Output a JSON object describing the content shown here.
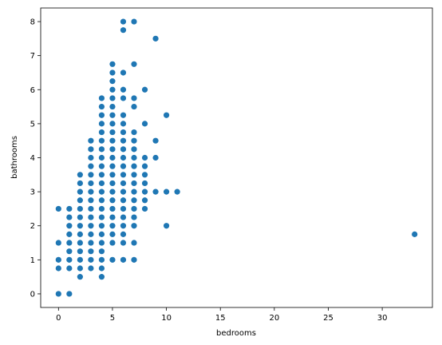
{
  "chart_data": {
    "type": "scatter",
    "title": "",
    "xlabel": "bedrooms",
    "ylabel": "bathrooms",
    "xlim": [
      -1.65,
      34.65
    ],
    "ylim": [
      -0.4,
      8.4
    ],
    "xticks": [
      0,
      5,
      10,
      15,
      20,
      25,
      30
    ],
    "yticks": [
      0,
      1,
      2,
      3,
      4,
      5,
      6,
      7,
      8
    ],
    "grid": false,
    "legend": "none",
    "marker_color": "#1f77b4",
    "series": [
      {
        "points": [
          [
            0,
            0
          ],
          [
            0,
            0.75
          ],
          [
            0,
            1
          ],
          [
            0,
            1.5
          ],
          [
            0,
            2.5
          ],
          [
            1,
            0
          ],
          [
            1,
            0.75
          ],
          [
            1,
            1
          ],
          [
            1,
            1.25
          ],
          [
            1,
            1.5
          ],
          [
            1,
            1.75
          ],
          [
            1,
            2
          ],
          [
            1,
            2.25
          ],
          [
            1,
            2.5
          ],
          [
            2,
            0.5
          ],
          [
            2,
            0.75
          ],
          [
            2,
            1
          ],
          [
            2,
            1.25
          ],
          [
            2,
            1.5
          ],
          [
            2,
            1.75
          ],
          [
            2,
            2
          ],
          [
            2,
            2.25
          ],
          [
            2,
            2.5
          ],
          [
            2,
            2.75
          ],
          [
            2,
            3
          ],
          [
            2,
            3.25
          ],
          [
            2,
            3.5
          ],
          [
            3,
            0.75
          ],
          [
            3,
            1
          ],
          [
            3,
            1.25
          ],
          [
            3,
            1.5
          ],
          [
            3,
            1.75
          ],
          [
            3,
            2
          ],
          [
            3,
            2.25
          ],
          [
            3,
            2.5
          ],
          [
            3,
            2.75
          ],
          [
            3,
            3
          ],
          [
            3,
            3.25
          ],
          [
            3,
            3.5
          ],
          [
            3,
            3.75
          ],
          [
            3,
            4
          ],
          [
            3,
            4.25
          ],
          [
            3,
            4.5
          ],
          [
            4,
            0.5
          ],
          [
            4,
            0.75
          ],
          [
            4,
            1
          ],
          [
            4,
            1.25
          ],
          [
            4,
            1.5
          ],
          [
            4,
            1.75
          ],
          [
            4,
            2
          ],
          [
            4,
            2.25
          ],
          [
            4,
            2.5
          ],
          [
            4,
            2.75
          ],
          [
            4,
            3
          ],
          [
            4,
            3.25
          ],
          [
            4,
            3.5
          ],
          [
            4,
            3.75
          ],
          [
            4,
            4
          ],
          [
            4,
            4.25
          ],
          [
            4,
            4.5
          ],
          [
            4,
            4.75
          ],
          [
            4,
            5
          ],
          [
            4,
            5.25
          ],
          [
            4,
            5.5
          ],
          [
            4,
            5.75
          ],
          [
            5,
            1
          ],
          [
            5,
            1.5
          ],
          [
            5,
            1.75
          ],
          [
            5,
            2
          ],
          [
            5,
            2.25
          ],
          [
            5,
            2.5
          ],
          [
            5,
            2.75
          ],
          [
            5,
            3
          ],
          [
            5,
            3.25
          ],
          [
            5,
            3.5
          ],
          [
            5,
            3.75
          ],
          [
            5,
            4
          ],
          [
            5,
            4.25
          ],
          [
            5,
            4.5
          ],
          [
            5,
            4.75
          ],
          [
            5,
            5
          ],
          [
            5,
            5.25
          ],
          [
            5,
            5.5
          ],
          [
            5,
            5.75
          ],
          [
            5,
            6
          ],
          [
            5,
            6.25
          ],
          [
            5,
            6.5
          ],
          [
            5,
            6.75
          ],
          [
            6,
            1
          ],
          [
            6,
            1.5
          ],
          [
            6,
            1.75
          ],
          [
            6,
            2
          ],
          [
            6,
            2.25
          ],
          [
            6,
            2.5
          ],
          [
            6,
            2.75
          ],
          [
            6,
            3
          ],
          [
            6,
            3.25
          ],
          [
            6,
            3.5
          ],
          [
            6,
            3.75
          ],
          [
            6,
            4
          ],
          [
            6,
            4.25
          ],
          [
            6,
            4.5
          ],
          [
            6,
            4.75
          ],
          [
            6,
            5
          ],
          [
            6,
            5.25
          ],
          [
            6,
            5.75
          ],
          [
            6,
            6
          ],
          [
            6,
            6.5
          ],
          [
            6,
            7.75
          ],
          [
            6,
            8
          ],
          [
            7,
            1
          ],
          [
            7,
            1.5
          ],
          [
            7,
            2
          ],
          [
            7,
            2.25
          ],
          [
            7,
            2.5
          ],
          [
            7,
            2.75
          ],
          [
            7,
            3
          ],
          [
            7,
            3.25
          ],
          [
            7,
            3.5
          ],
          [
            7,
            3.75
          ],
          [
            7,
            4
          ],
          [
            7,
            4.25
          ],
          [
            7,
            4.5
          ],
          [
            7,
            4.75
          ],
          [
            7,
            5.5
          ],
          [
            7,
            5.75
          ],
          [
            7,
            6.75
          ],
          [
            7,
            8
          ],
          [
            8,
            2.5
          ],
          [
            8,
            2.75
          ],
          [
            8,
            3
          ],
          [
            8,
            3.25
          ],
          [
            8,
            3.5
          ],
          [
            8,
            3.75
          ],
          [
            8,
            4
          ],
          [
            8,
            5
          ],
          [
            8,
            6
          ],
          [
            9,
            3
          ],
          [
            9,
            4
          ],
          [
            9,
            4.5
          ],
          [
            9,
            7.5
          ],
          [
            10,
            2
          ],
          [
            10,
            3
          ],
          [
            10,
            5.25
          ],
          [
            11,
            3
          ],
          [
            33,
            1.75
          ]
        ]
      }
    ]
  }
}
